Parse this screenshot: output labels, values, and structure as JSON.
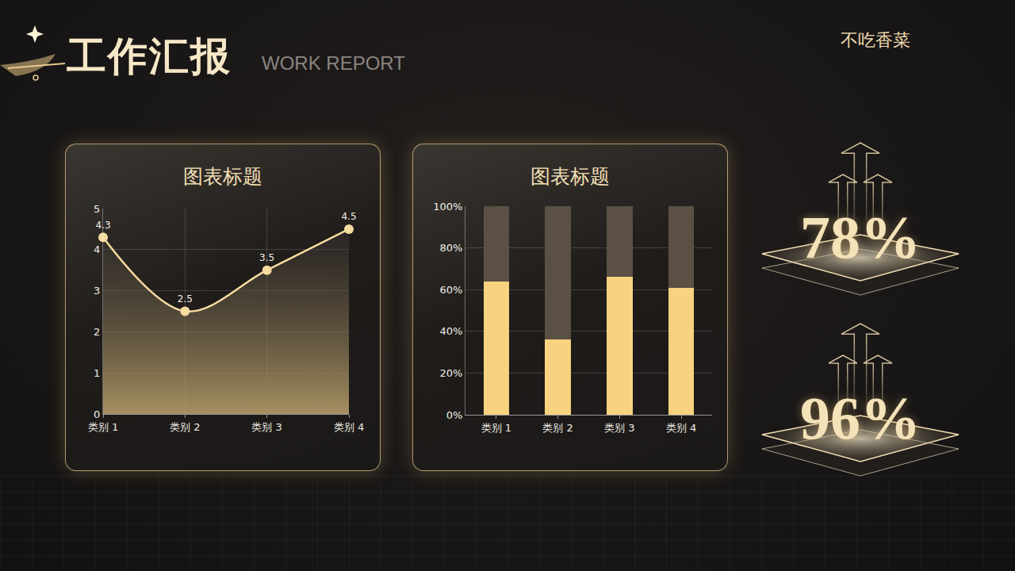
{
  "header": {
    "title": "工作汇报",
    "subtitle": "WORK REPORT",
    "author": "不吃香菜"
  },
  "chart_data": [
    {
      "type": "line",
      "title": "图表标题",
      "categories": [
        "类别 1",
        "类别 2",
        "类别 3",
        "类别 4"
      ],
      "values": [
        4.3,
        2.5,
        3.5,
        4.5
      ],
      "color": "#f7dca0",
      "ylim": [
        0,
        5
      ],
      "yticks": [
        0,
        1,
        2,
        3,
        4,
        5
      ],
      "grid": true,
      "data_labels": true,
      "marker": "circle",
      "line_style": "spline"
    },
    {
      "type": "bar",
      "title": "图表标题",
      "stacked": true,
      "categories": [
        "类别 1",
        "类别 2",
        "类别 3",
        "类别 4"
      ],
      "series": [
        {
          "color": "#f8d27e",
          "values": [
            64,
            36,
            66,
            61
          ]
        },
        {
          "color": "#5a5044",
          "values": [
            36,
            64,
            34,
            39
          ]
        }
      ],
      "ylim": [
        0,
        100
      ],
      "yticks": [
        {
          "value": 0,
          "label": "0%"
        },
        {
          "value": 20,
          "label": "20%"
        },
        {
          "value": 40,
          "label": "40%"
        },
        {
          "value": 60,
          "label": "60%"
        },
        {
          "value": 80,
          "label": "80%"
        },
        {
          "value": 100,
          "label": "100%"
        }
      ],
      "grid": true
    }
  ],
  "stats": [
    "78%",
    "96%"
  ]
}
